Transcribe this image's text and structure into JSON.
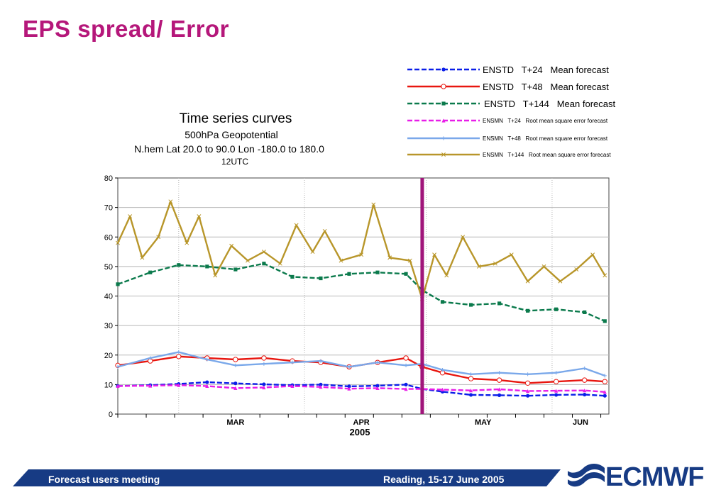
{
  "slide": {
    "title": "EPS spread/ Error",
    "footer_left": "Forecast users meeting",
    "footer_right": "Reading, 15-17 June 2005",
    "logo_text": "ECMWF"
  },
  "colors": {
    "title": "#b5177a",
    "footer_bar": "#173b84",
    "event_line": "#a0157a",
    "logo": "#173b84"
  },
  "chart_data": {
    "type": "line",
    "title": "Time series curves",
    "subtitle_lines": [
      "500hPa Geopotential",
      "N.hem  Lat  20.0 to 90.0 Lon  -180.0 to  180.0",
      "12UTC"
    ],
    "xlabel": "2005",
    "ylabel": "",
    "ylim": [
      0,
      80
    ],
    "yticks": [
      0,
      10,
      20,
      30,
      40,
      50,
      60,
      70,
      80
    ],
    "xlim": [
      "2005-02-14",
      "2005-06-15"
    ],
    "month_labels": [
      {
        "label": "MAR",
        "date": "2005-03-15"
      },
      {
        "label": "APR",
        "date": "2005-04-15"
      },
      {
        "label": "MAY",
        "date": "2005-05-15"
      },
      {
        "label": "JUN",
        "date": "2005-06-08"
      }
    ],
    "month_boundaries": [
      "2005-03-01",
      "2005-04-01",
      "2005-05-01",
      "2005-06-01"
    ],
    "event_line_date": "2005-04-30",
    "grid": true,
    "legend_position": "top-right",
    "series": [
      {
        "name": "ENSTD   T+24   Mean forecast",
        "color": "#0a1ee8",
        "dash": "dashed",
        "marker": "dot",
        "points": [
          [
            "2005-02-14",
            9.5
          ],
          [
            "2005-02-22",
            9.8
          ],
          [
            "2005-03-01",
            10.2
          ],
          [
            "2005-03-08",
            10.8
          ],
          [
            "2005-03-15",
            10.4
          ],
          [
            "2005-03-22",
            10.1
          ],
          [
            "2005-03-29",
            9.8
          ],
          [
            "2005-04-05",
            10.0
          ],
          [
            "2005-04-12",
            9.4
          ],
          [
            "2005-04-19",
            9.6
          ],
          [
            "2005-04-26",
            10.0
          ],
          [
            "2005-04-30",
            8.5
          ],
          [
            "2005-05-05",
            7.6
          ],
          [
            "2005-05-12",
            6.5
          ],
          [
            "2005-05-19",
            6.4
          ],
          [
            "2005-05-26",
            6.2
          ],
          [
            "2005-06-02",
            6.5
          ],
          [
            "2005-06-09",
            6.6
          ],
          [
            "2005-06-14",
            6.2
          ]
        ]
      },
      {
        "name": "ENSTD   T+48   Mean forecast",
        "color": "#e8160f",
        "dash": "solid",
        "marker": "circle",
        "points": [
          [
            "2005-02-14",
            16.5
          ],
          [
            "2005-02-22",
            18.0
          ],
          [
            "2005-03-01",
            19.5
          ],
          [
            "2005-03-08",
            19.0
          ],
          [
            "2005-03-15",
            18.5
          ],
          [
            "2005-03-22",
            19.0
          ],
          [
            "2005-03-29",
            18.0
          ],
          [
            "2005-04-05",
            17.5
          ],
          [
            "2005-04-12",
            16.0
          ],
          [
            "2005-04-19",
            17.5
          ],
          [
            "2005-04-26",
            19.0
          ],
          [
            "2005-04-30",
            16.0
          ],
          [
            "2005-05-05",
            14.0
          ],
          [
            "2005-05-12",
            12.0
          ],
          [
            "2005-05-19",
            11.5
          ],
          [
            "2005-05-26",
            10.5
          ],
          [
            "2005-06-02",
            11.0
          ],
          [
            "2005-06-09",
            11.5
          ],
          [
            "2005-06-14",
            11.0
          ]
        ]
      },
      {
        "name": "ENSTD   T+144   Mean forecast",
        "color": "#0b7a4c",
        "dash": "dashed",
        "marker": "square",
        "points": [
          [
            "2005-02-14",
            44.0
          ],
          [
            "2005-02-22",
            48.0
          ],
          [
            "2005-03-01",
            50.5
          ],
          [
            "2005-03-08",
            50.0
          ],
          [
            "2005-03-15",
            49.0
          ],
          [
            "2005-03-22",
            51.0
          ],
          [
            "2005-03-29",
            46.5
          ],
          [
            "2005-04-05",
            46.0
          ],
          [
            "2005-04-12",
            47.5
          ],
          [
            "2005-04-19",
            48.0
          ],
          [
            "2005-04-26",
            47.5
          ],
          [
            "2005-04-30",
            42.0
          ],
          [
            "2005-05-05",
            38.0
          ],
          [
            "2005-05-12",
            37.0
          ],
          [
            "2005-05-19",
            37.5
          ],
          [
            "2005-05-26",
            35.0
          ],
          [
            "2005-06-02",
            35.5
          ],
          [
            "2005-06-09",
            34.5
          ],
          [
            "2005-06-14",
            31.5
          ]
        ]
      },
      {
        "name": "ENSMN   T+24   Root mean square error forecast",
        "color": "#e81ee8",
        "dash": "dashed",
        "marker": "triangle",
        "points": [
          [
            "2005-02-14",
            9.5
          ],
          [
            "2005-02-22",
            9.6
          ],
          [
            "2005-03-01",
            9.8
          ],
          [
            "2005-03-08",
            9.5
          ],
          [
            "2005-03-15",
            8.8
          ],
          [
            "2005-03-22",
            9.0
          ],
          [
            "2005-03-29",
            9.5
          ],
          [
            "2005-04-05",
            9.2
          ],
          [
            "2005-04-12",
            8.6
          ],
          [
            "2005-04-19",
            8.8
          ],
          [
            "2005-04-26",
            8.5
          ],
          [
            "2005-04-30",
            8.5
          ],
          [
            "2005-05-05",
            8.3
          ],
          [
            "2005-05-12",
            8.0
          ],
          [
            "2005-05-19",
            8.4
          ],
          [
            "2005-05-26",
            7.8
          ],
          [
            "2005-06-02",
            7.9
          ],
          [
            "2005-06-09",
            8.0
          ],
          [
            "2005-06-14",
            7.5
          ]
        ]
      },
      {
        "name": "ENSMN   T+48   Root mean square error forecast",
        "color": "#7aa8ea",
        "dash": "solid",
        "marker": "plus",
        "points": [
          [
            "2005-02-14",
            16.0
          ],
          [
            "2005-02-22",
            19.0
          ],
          [
            "2005-03-01",
            21.0
          ],
          [
            "2005-03-08",
            18.5
          ],
          [
            "2005-03-15",
            16.5
          ],
          [
            "2005-03-22",
            17.0
          ],
          [
            "2005-03-29",
            17.5
          ],
          [
            "2005-04-05",
            18.0
          ],
          [
            "2005-04-12",
            16.0
          ],
          [
            "2005-04-19",
            17.5
          ],
          [
            "2005-04-26",
            16.5
          ],
          [
            "2005-04-30",
            17.0
          ],
          [
            "2005-05-05",
            15.0
          ],
          [
            "2005-05-12",
            13.5
          ],
          [
            "2005-05-19",
            14.0
          ],
          [
            "2005-05-26",
            13.5
          ],
          [
            "2005-06-02",
            14.0
          ],
          [
            "2005-06-09",
            15.5
          ],
          [
            "2005-06-14",
            13.0
          ]
        ]
      },
      {
        "name": "ENSMN   T+144   Root mean square error forecast",
        "color": "#b8962a",
        "dash": "solid",
        "marker": "x",
        "points": [
          [
            "2005-02-14",
            58.0
          ],
          [
            "2005-02-17",
            67.0
          ],
          [
            "2005-02-20",
            53.0
          ],
          [
            "2005-02-24",
            60.0
          ],
          [
            "2005-02-27",
            72.0
          ],
          [
            "2005-03-03",
            58.0
          ],
          [
            "2005-03-06",
            67.0
          ],
          [
            "2005-03-10",
            47.0
          ],
          [
            "2005-03-14",
            57.0
          ],
          [
            "2005-03-18",
            52.0
          ],
          [
            "2005-03-22",
            55.0
          ],
          [
            "2005-03-26",
            51.0
          ],
          [
            "2005-03-30",
            64.0
          ],
          [
            "2005-04-03",
            55.0
          ],
          [
            "2005-04-06",
            62.0
          ],
          [
            "2005-04-10",
            52.0
          ],
          [
            "2005-04-15",
            54.0
          ],
          [
            "2005-04-18",
            71.0
          ],
          [
            "2005-04-22",
            53.0
          ],
          [
            "2005-04-27",
            52.0
          ],
          [
            "2005-04-30",
            39.0
          ],
          [
            "2005-05-03",
            54.0
          ],
          [
            "2005-05-06",
            47.0
          ],
          [
            "2005-05-10",
            60.0
          ],
          [
            "2005-05-14",
            50.0
          ],
          [
            "2005-05-18",
            51.0
          ],
          [
            "2005-05-22",
            54.0
          ],
          [
            "2005-05-26",
            45.0
          ],
          [
            "2005-05-30",
            50.0
          ],
          [
            "2005-06-03",
            45.0
          ],
          [
            "2005-06-07",
            49.0
          ],
          [
            "2005-06-11",
            54.0
          ],
          [
            "2005-06-14",
            47.0
          ]
        ]
      }
    ]
  }
}
